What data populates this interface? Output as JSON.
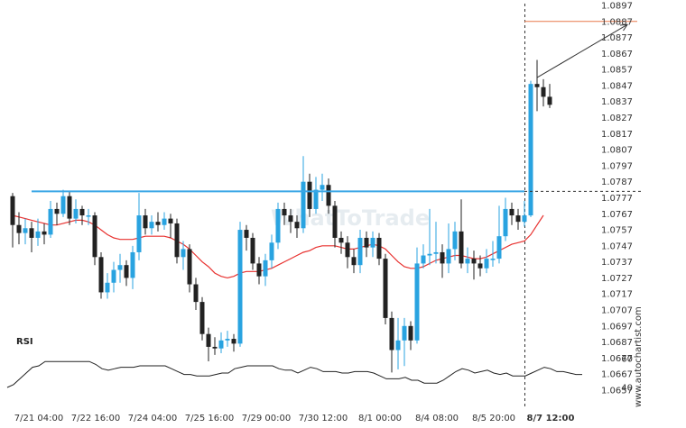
{
  "watermark_text": "WhatToTrade",
  "side_brand": "www.autochartist.com",
  "rsi_label": "RSI",
  "colors": {
    "bull": "#29a3e0",
    "bear": "#222222",
    "ma": "#e8312f",
    "resistance": "#3aa6e6",
    "target": "#e8794a",
    "rsi": "#222222",
    "axis_text": "#333333"
  },
  "chart_data": {
    "type": "candlestick",
    "pair_interval": "4h",
    "price_axis": {
      "ylim": [
        1.0647,
        1.0897
      ],
      "ticks": [
        "1.0897",
        "1.0887",
        "1.0877",
        "1.0867",
        "1.0857",
        "1.0847",
        "1.0837",
        "1.0827",
        "1.0817",
        "1.0807",
        "1.0797",
        "1.0787",
        "1.0777",
        "1.0767",
        "1.0757",
        "1.0747",
        "1.0737",
        "1.0727",
        "1.0717",
        "1.0707",
        "1.0697",
        "1.0687",
        "1.0677",
        "1.0667",
        "1.0657"
      ]
    },
    "x_tick_labels": [
      {
        "label": "7/21 04:00",
        "index": 5
      },
      {
        "label": "7/22 16:00",
        "index": 14
      },
      {
        "label": "7/24 04:00",
        "index": 23
      },
      {
        "label": "7/25 16:00",
        "index": 32
      },
      {
        "label": "7/29 00:00",
        "index": 41
      },
      {
        "label": "7/30 12:00",
        "index": 50
      },
      {
        "label": "8/1 00:00",
        "index": 59
      },
      {
        "label": "8/4 08:00",
        "index": 68
      },
      {
        "label": "8/5 20:00",
        "index": 77
      },
      {
        "label": "8/7 12:00",
        "index": 86,
        "bold": true
      }
    ],
    "candles": [
      [
        1.0778,
        1.076,
        1.078,
        1.0746
      ],
      [
        1.076,
        1.0755,
        1.0768,
        1.0748
      ],
      [
        1.0755,
        1.0758,
        1.0764,
        1.0748
      ],
      [
        1.0758,
        1.0752,
        1.0762,
        1.0743
      ],
      [
        1.0752,
        1.0756,
        1.0764,
        1.0747
      ],
      [
        1.0756,
        1.0754,
        1.0761,
        1.0748
      ],
      [
        1.0754,
        1.077,
        1.0775,
        1.0752
      ],
      [
        1.077,
        1.0767,
        1.0774,
        1.076
      ],
      [
        1.0767,
        1.0778,
        1.0782,
        1.0765
      ],
      [
        1.0778,
        1.0764,
        1.0781,
        1.076
      ],
      [
        1.0764,
        1.077,
        1.0776,
        1.0761
      ],
      [
        1.077,
        1.0766,
        1.0772,
        1.076
      ],
      [
        1.0766,
        1.0766,
        1.077,
        1.076
      ],
      [
        1.0766,
        1.074,
        1.0768,
        1.0735
      ],
      [
        1.074,
        1.0718,
        1.0743,
        1.0714
      ],
      [
        1.0718,
        1.0724,
        1.073,
        1.0714
      ],
      [
        1.0724,
        1.0732,
        1.0737,
        1.0718
      ],
      [
        1.0732,
        1.0735,
        1.0742,
        1.0724
      ],
      [
        1.0735,
        1.0727,
        1.0738,
        1.0722
      ],
      [
        1.0727,
        1.0743,
        1.0747,
        1.072
      ],
      [
        1.0743,
        1.0766,
        1.078,
        1.0738
      ],
      [
        1.0766,
        1.0758,
        1.077,
        1.0754
      ],
      [
        1.0758,
        1.0762,
        1.0766,
        1.0754
      ],
      [
        1.0762,
        1.076,
        1.0768,
        1.0756
      ],
      [
        1.076,
        1.0764,
        1.0768,
        1.0757
      ],
      [
        1.0764,
        1.0761,
        1.0767,
        1.0752
      ],
      [
        1.0761,
        1.074,
        1.0764,
        1.0736
      ],
      [
        1.074,
        1.0745,
        1.075,
        1.0732
      ],
      [
        1.0745,
        1.0723,
        1.0748,
        1.0718
      ],
      [
        1.0723,
        1.0712,
        1.0727,
        1.0707
      ],
      [
        1.0712,
        1.0692,
        1.0715,
        1.0688
      ],
      [
        1.0692,
        1.0684,
        1.0696,
        1.0675
      ],
      [
        1.0684,
        1.0683,
        1.069,
        1.0679
      ],
      [
        1.0683,
        1.0688,
        1.0693,
        1.068
      ],
      [
        1.0688,
        1.0689,
        1.0694,
        1.0684
      ],
      [
        1.0689,
        1.0686,
        1.0692,
        1.0681
      ],
      [
        1.0686,
        1.0757,
        1.0762,
        1.0684
      ],
      [
        1.0757,
        1.0752,
        1.076,
        1.0744
      ],
      [
        1.0752,
        1.0736,
        1.0755,
        1.0732
      ],
      [
        1.0736,
        1.0728,
        1.074,
        1.0723
      ],
      [
        1.0728,
        1.0738,
        1.0742,
        1.0722
      ],
      [
        1.0738,
        1.0749,
        1.0754,
        1.0733
      ],
      [
        1.0749,
        1.077,
        1.0774,
        1.0745
      ],
      [
        1.077,
        1.0766,
        1.0774,
        1.076
      ],
      [
        1.0766,
        1.0762,
        1.077,
        1.0755
      ],
      [
        1.0762,
        1.0758,
        1.0766,
        1.0752
      ],
      [
        1.0758,
        1.0787,
        1.0803,
        1.0755
      ],
      [
        1.0787,
        1.077,
        1.0792,
        1.0765
      ],
      [
        1.077,
        1.0782,
        1.079,
        1.0767
      ],
      [
        1.0782,
        1.0785,
        1.0792,
        1.0775
      ],
      [
        1.0785,
        1.0772,
        1.0789,
        1.0767
      ],
      [
        1.0772,
        1.0752,
        1.0775,
        1.0746
      ],
      [
        1.0752,
        1.0749,
        1.0756,
        1.0742
      ],
      [
        1.0749,
        1.074,
        1.0753,
        1.0733
      ],
      [
        1.074,
        1.0735,
        1.0745,
        1.073
      ],
      [
        1.0735,
        1.0752,
        1.0757,
        1.073
      ],
      [
        1.0752,
        1.0746,
        1.0756,
        1.074
      ],
      [
        1.0746,
        1.0752,
        1.0756,
        1.074
      ],
      [
        1.0752,
        1.0739,
        1.0755,
        1.0735
      ],
      [
        1.0739,
        1.0702,
        1.0742,
        1.0698
      ],
      [
        1.0702,
        1.0682,
        1.0706,
        1.0668
      ],
      [
        1.0682,
        1.0688,
        1.0702,
        1.067
      ],
      [
        1.0688,
        1.0697,
        1.0702,
        1.0672
      ],
      [
        1.0697,
        1.0688,
        1.07,
        1.0682
      ],
      [
        1.0688,
        1.0736,
        1.0746,
        1.0686
      ],
      [
        1.0736,
        1.0741,
        1.0748,
        1.0733
      ],
      [
        1.0741,
        1.0742,
        1.077,
        1.0735
      ],
      [
        1.0742,
        1.0743,
        1.0762,
        1.0736
      ],
      [
        1.0743,
        1.0736,
        1.0748,
        1.0727
      ],
      [
        1.0736,
        1.0745,
        1.0761,
        1.073
      ],
      [
        1.0745,
        1.0756,
        1.0762,
        1.0738
      ],
      [
        1.0756,
        1.0736,
        1.0776,
        1.0733
      ],
      [
        1.0736,
        1.0739,
        1.0746,
        1.073
      ],
      [
        1.0739,
        1.0736,
        1.0744,
        1.0726
      ],
      [
        1.0736,
        1.0733,
        1.0741,
        1.0728
      ],
      [
        1.0733,
        1.0739,
        1.0745,
        1.073
      ],
      [
        1.0739,
        1.0739,
        1.075,
        1.0734
      ],
      [
        1.0739,
        1.0753,
        1.0772,
        1.0736
      ],
      [
        1.0753,
        1.077,
        1.0777,
        1.075
      ],
      [
        1.077,
        1.0766,
        1.0774,
        1.076
      ],
      [
        1.0766,
        1.0762,
        1.077,
        1.0757
      ],
      [
        1.0762,
        1.0766,
        1.0775,
        1.0759
      ],
      [
        1.0766,
        1.0848,
        1.085,
        1.0765
      ],
      [
        1.0848,
        1.0846,
        1.0863,
        1.0831
      ],
      [
        1.0846,
        1.084,
        1.0851,
        1.0834
      ],
      [
        1.084,
        1.0835,
        1.0848,
        1.0833
      ]
    ],
    "ma_series": [
      1.0766,
      1.0765,
      1.0764,
      1.0763,
      1.0762,
      1.0761,
      1.076,
      1.076,
      1.0761,
      1.0762,
      1.0763,
      1.0763,
      1.0762,
      1.076,
      1.0757,
      1.0754,
      1.0752,
      1.0751,
      1.0751,
      1.0751,
      1.0752,
      1.0753,
      1.0753,
      1.0753,
      1.0753,
      1.0752,
      1.075,
      1.0748,
      1.0745,
      1.0741,
      1.0737,
      1.0734,
      1.073,
      1.0728,
      1.0727,
      1.0728,
      1.073,
      1.0731,
      1.0731,
      1.0731,
      1.0732,
      1.0733,
      1.0735,
      1.0737,
      1.0739,
      1.0741,
      1.0743,
      1.0744,
      1.0746,
      1.0747,
      1.0747,
      1.0747,
      1.0746,
      1.0745,
      1.0745,
      1.0746,
      1.0747,
      1.0748,
      1.0747,
      1.0745,
      1.0741,
      1.0737,
      1.0734,
      1.0733,
      1.0733,
      1.0734,
      1.0736,
      1.0738,
      1.0739,
      1.074,
      1.0741,
      1.0741,
      1.074,
      1.0739,
      1.0739,
      1.074,
      1.0742,
      1.0744,
      1.0746,
      1.0748,
      1.0749,
      1.075,
      1.0754,
      1.076,
      1.0766
    ],
    "resistance_level": 1.0781,
    "resistance_start_index": 3,
    "resistance_end_index": 81,
    "target_level": 1.0887,
    "forecast_arrow": {
      "from_index": 83,
      "from_price": 1.0852,
      "to_index": 89,
      "to_price": 1.0885
    },
    "vertical_marker_index": 81,
    "rsi": {
      "ylim": [
        35,
        70
      ],
      "ticks": [
        "60",
        "40"
      ],
      "values": [
        40,
        42,
        46,
        50,
        54,
        55,
        58,
        58,
        58,
        58,
        58,
        58,
        58,
        58,
        56,
        53,
        52,
        53,
        54,
        54,
        54,
        55,
        55,
        55,
        55,
        55,
        53,
        51,
        49,
        49,
        48,
        48,
        48,
        49,
        50,
        50,
        53,
        54,
        55,
        55,
        55,
        55,
        55,
        53,
        52,
        52,
        50,
        52,
        54,
        53,
        51,
        51,
        51,
        50,
        50,
        51,
        51,
        51,
        50,
        48,
        46,
        46,
        46,
        47,
        45,
        45,
        43,
        43,
        43,
        45,
        48,
        51,
        53,
        52,
        50,
        51,
        52,
        50,
        49,
        50,
        48,
        48,
        48,
        50,
        52,
        54,
        53,
        51,
        51,
        50,
        49,
        49
      ]
    }
  }
}
